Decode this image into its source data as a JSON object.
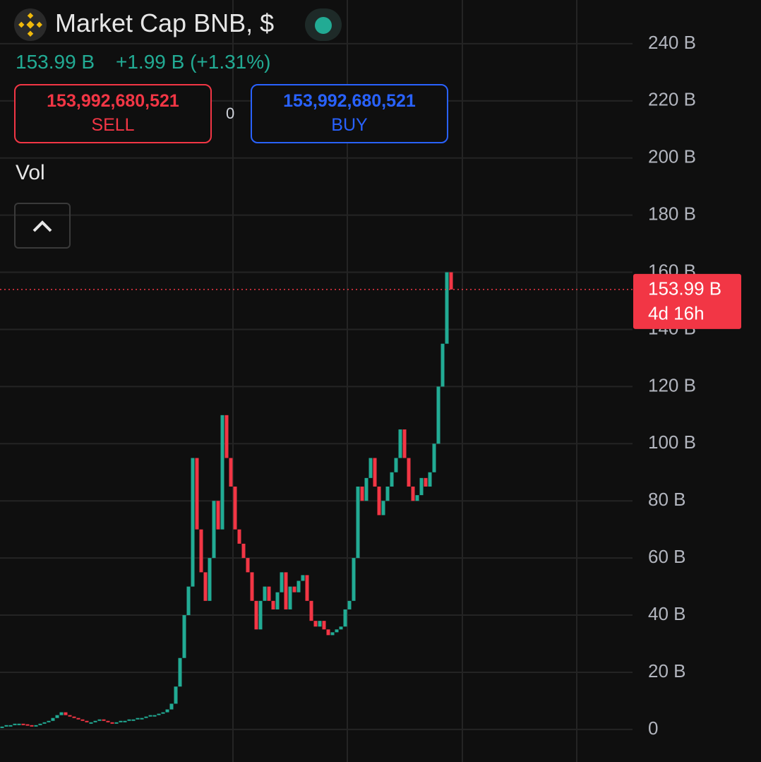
{
  "header": {
    "title": "Market Cap BNB, $",
    "price": "153.99 B",
    "change": "+1.99 B (+1.31%)"
  },
  "trade": {
    "sell_price": "153,992,680,521",
    "sell_label": "SELL",
    "spread": "0",
    "buy_price": "153,992,680,521",
    "buy_label": "BUY"
  },
  "indicator": "Vol",
  "chart_data": {
    "type": "candles",
    "up_color": "#22ab94",
    "down_color": "#f23645",
    "values": [
      1,
      1.5,
      1.5,
      2,
      2,
      1.8,
      1.5,
      1.2,
      1.5,
      2,
      2.5,
      3,
      4,
      5,
      6,
      5,
      4.5,
      4,
      3.5,
      3,
      2.5,
      2.5,
      3,
      3.5,
      3,
      2.5,
      2,
      2.5,
      3,
      3,
      3.5,
      3.5,
      4,
      4,
      4.5,
      5,
      5,
      5.5,
      6,
      7,
      9,
      15,
      25,
      40,
      50,
      95,
      70,
      55,
      45,
      60,
      80,
      70,
      110,
      95,
      85,
      70,
      65,
      60,
      55,
      45,
      35,
      45,
      50,
      45,
      42,
      48,
      55,
      42,
      50,
      48,
      52,
      54,
      45,
      38,
      36,
      38,
      35,
      33,
      34,
      35,
      36,
      42,
      45,
      60,
      85,
      80,
      88,
      95,
      85,
      75,
      80,
      85,
      90,
      95,
      105,
      95,
      85,
      80,
      82,
      88,
      85,
      90,
      100,
      120,
      135,
      160,
      153.99
    ],
    "ylim": [
      -11.4,
      255.3
    ],
    "yticks": [
      {
        "value": 0,
        "label": "0"
      },
      {
        "value": 20,
        "label": "20 B"
      },
      {
        "value": 40,
        "label": "40 B"
      },
      {
        "value": 60,
        "label": "60 B"
      },
      {
        "value": 80,
        "label": "80 B"
      },
      {
        "value": 100,
        "label": "100 B"
      },
      {
        "value": 120,
        "label": "120 B"
      },
      {
        "value": 140,
        "label": "140 B"
      },
      {
        "value": 160,
        "label": "160 B"
      },
      {
        "value": 180,
        "label": "180 B"
      },
      {
        "value": 200,
        "label": "200 B"
      },
      {
        "value": 220,
        "label": "220 B"
      },
      {
        "value": 240,
        "label": "240 B"
      }
    ],
    "grid": true,
    "last_price": {
      "value": 153.99,
      "label": "153.99 B"
    },
    "countdown": "4d 16h",
    "last_color": "#f23645"
  }
}
